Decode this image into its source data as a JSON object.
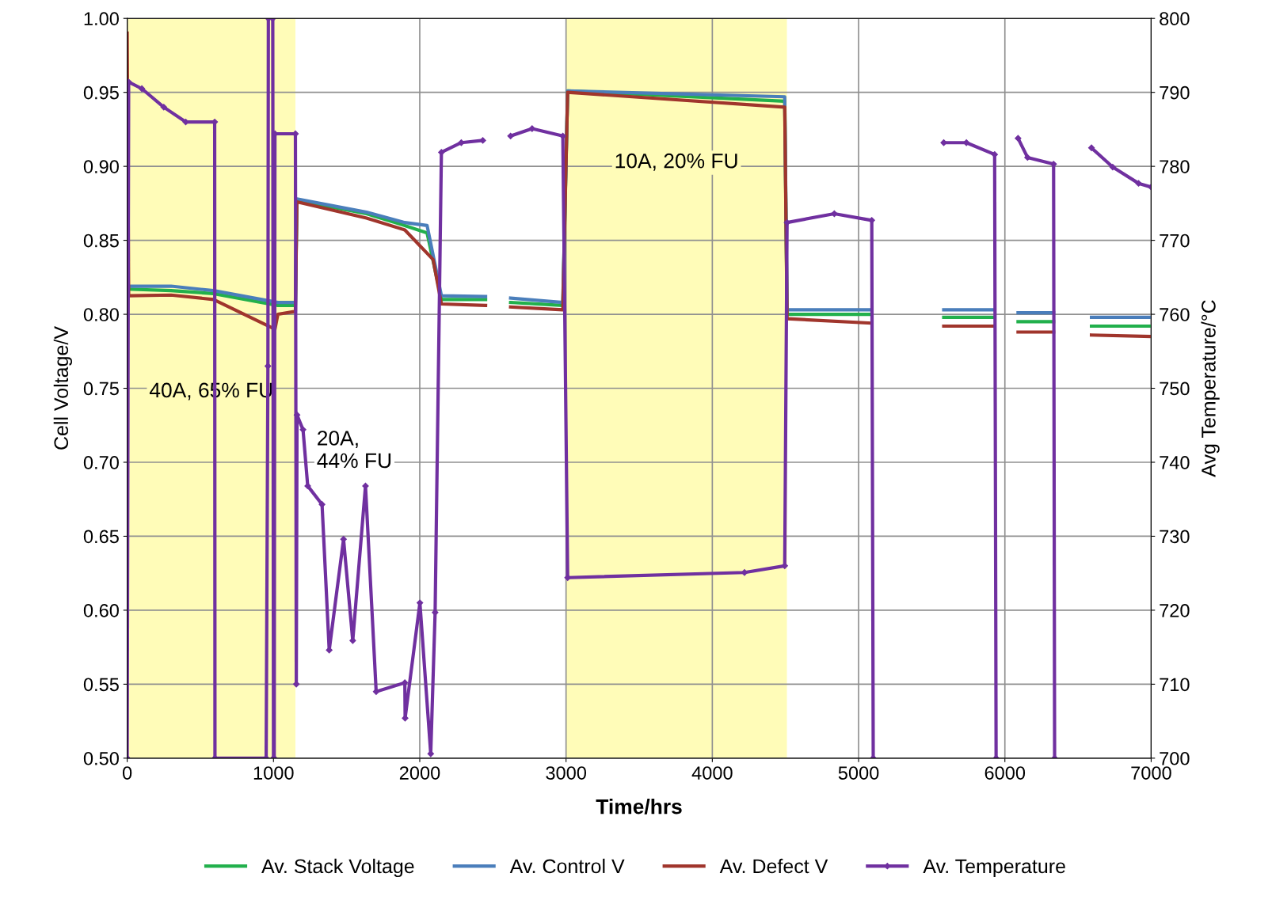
{
  "chart_data": {
    "type": "line",
    "xlabel": "Time/hrs",
    "ylabel": "Cell Voltage/V",
    "y2label": "Avg Temperature/°C",
    "xlim": [
      0,
      7000
    ],
    "xticks": [
      0,
      1000,
      2000,
      3000,
      4000,
      5000,
      6000,
      7000
    ],
    "ylim": [
      0.5,
      1.0
    ],
    "yticks": [
      {
        "value": 0.5,
        "label": "0.50"
      },
      {
        "value": 0.55,
        "label": "0.55"
      },
      {
        "value": 0.6,
        "label": "0.60"
      },
      {
        "value": 0.65,
        "label": "0.65"
      },
      {
        "value": 0.7,
        "label": "0.70"
      },
      {
        "value": 0.75,
        "label": "0.75"
      },
      {
        "value": 0.8,
        "label": "0.80"
      },
      {
        "value": 0.85,
        "label": "0.85"
      },
      {
        "value": 0.9,
        "label": "0.90"
      },
      {
        "value": 0.95,
        "label": "0.95"
      },
      {
        "value": 1.0,
        "label": "1.00"
      }
    ],
    "y2lim": [
      700,
      800
    ],
    "y2ticks": [
      700,
      710,
      720,
      730,
      740,
      750,
      760,
      770,
      780,
      790,
      800
    ],
    "grid": true,
    "legend": "bottom",
    "bands": [
      {
        "axis": "x",
        "from": 0,
        "to": 1150,
        "color": "#fffcb8",
        "label": "40A, 65% FU"
      },
      {
        "axis": "x",
        "from": 3000,
        "to": 4510,
        "color": "#fffcb8",
        "label": "10A, 20% FU"
      }
    ],
    "annotations": [
      "20A,\n44% FU"
    ],
    "series": [
      {
        "name": "Av. Stack Voltage",
        "color": "#22b04c",
        "marker": "none",
        "x": [
          10,
          300,
          590,
          1030,
          1150,
          1160,
          1636,
          1898,
          2050,
          2148,
          2450,
          2460,
          2621,
          2978,
          3011,
          4495,
          4511,
          5090,
          5100,
          5582,
          5930,
          5940,
          6090,
          6333,
          6340,
          6592,
          7000
        ],
        "values": [
          0.817,
          0.816,
          0.814,
          0.806,
          0.806,
          0.877,
          0.868,
          0.86,
          0.855,
          0.81,
          0.81,
          null,
          0.808,
          0.806,
          0.951,
          0.944,
          0.8,
          0.8,
          null,
          0.798,
          0.798,
          null,
          0.795,
          0.795,
          null,
          0.792,
          0.792
        ]
      },
      {
        "name": "Av. Control V",
        "color": "#4a7ebb",
        "marker": "none",
        "x": [
          10,
          300,
          590,
          1030,
          1150,
          1160,
          1636,
          1898,
          2050,
          2148,
          2450,
          2460,
          2621,
          2978,
          3011,
          4495,
          4511,
          5090,
          5100,
          5582,
          5930,
          5940,
          6090,
          6333,
          6340,
          6592,
          7000
        ],
        "values": [
          0.819,
          0.819,
          0.816,
          0.808,
          0.808,
          0.878,
          0.869,
          0.862,
          0.86,
          0.8125,
          0.812,
          null,
          0.811,
          0.808,
          0.951,
          0.947,
          0.803,
          0.803,
          null,
          0.803,
          0.803,
          null,
          0.801,
          0.801,
          null,
          0.798,
          0.798
        ]
      },
      {
        "name": "Av. Defect V",
        "color": "#a0352c",
        "marker": "none",
        "x": [
          0,
          10,
          300,
          590,
          1010,
          1030,
          1150,
          1160,
          1636,
          1898,
          2091,
          2148,
          2450,
          2460,
          2621,
          2978,
          3011,
          4495,
          4511,
          5090,
          5100,
          5582,
          5930,
          5940,
          6090,
          6333,
          6340,
          6592,
          7000
        ],
        "values": [
          0.99,
          0.8125,
          0.813,
          0.81,
          0.79,
          0.8,
          0.802,
          0.876,
          0.865,
          0.857,
          0.837,
          0.807,
          0.806,
          null,
          0.805,
          0.803,
          0.95,
          0.94,
          0.797,
          0.794,
          null,
          0.792,
          0.792,
          null,
          0.788,
          0.788,
          null,
          0.786,
          0.785
        ]
      },
      {
        "name": "Av. Temperature",
        "color": "#7030a0",
        "marker": "diamond",
        "axis": "y2",
        "x": [
          0,
          10,
          100,
          250,
          400,
          598,
          600,
          950,
          962,
          965,
          995,
          1000,
          1005,
          1010,
          1150,
          1156,
          1161,
          1202,
          1234,
          1332,
          1381,
          1479,
          1542,
          1629,
          1702,
          1898,
          1900,
          2001,
          2075,
          2105,
          2148,
          2284,
          2431,
          2440,
          2621,
          2768,
          2978,
          3011,
          4220,
          4495,
          4511,
          4834,
          5090,
          5100,
          5574,
          5582,
          5737,
          5930,
          5940,
          6085,
          6090,
          6155,
          6333,
          6340,
          6586,
          6592,
          6737,
          6914,
          7000
        ],
        "values": [
          700,
          791.4,
          790.5,
          788,
          786,
          786,
          700,
          700,
          753,
          800,
          800,
          700,
          700,
          784.4,
          784.4,
          710,
          746.4,
          744.4,
          736.8,
          734.3,
          714.6,
          729.6,
          715.9,
          736.8,
          709,
          710.2,
          705.4,
          721,
          700.6,
          719.7,
          781.9,
          783.2,
          783.5,
          null,
          784.1,
          785.1,
          784.1,
          724.4,
          725.1,
          726,
          772.4,
          773.6,
          772.7,
          700,
          null,
          783.2,
          783.2,
          781.6,
          700,
          null,
          783.8,
          781.2,
          780.3,
          700,
          null,
          782.5,
          779.9,
          777.7,
          777.2
        ]
      }
    ]
  }
}
